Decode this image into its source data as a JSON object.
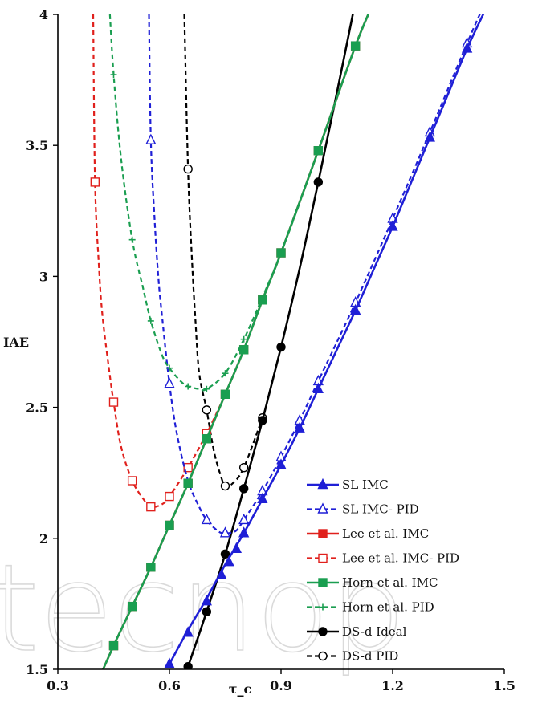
{
  "watermark": "tecnop",
  "chart_data": {
    "type": "line",
    "title": "",
    "xlabel": "τ_c",
    "ylabel": "IAE",
    "xlim": [
      0.3,
      1.5
    ],
    "ylim": [
      1.5,
      4.0
    ],
    "x_ticks": [
      0.3,
      0.6,
      0.9,
      1.2,
      1.5
    ],
    "x_tick_labels": [
      "0.3",
      "0.6",
      "0.9",
      "1.2",
      "1.5"
    ],
    "y_ticks": [
      1.5,
      2.0,
      2.5,
      3.0,
      3.5,
      4.0
    ],
    "y_tick_labels": [
      "1.5",
      "2",
      "2.5",
      "3",
      "3.5",
      "4"
    ],
    "grid": false,
    "legend_position": "bottom-right",
    "series": [
      {
        "name": "SL IMC",
        "color": "#1f1fd6",
        "dash": "solid",
        "marker": "triangle-filled",
        "x": [
          0.6,
          0.65,
          0.7,
          0.75,
          0.8,
          0.85,
          0.9,
          0.95,
          1.0,
          1.05,
          1.1,
          1.15,
          1.2,
          1.25,
          1.3,
          1.35,
          1.4,
          1.45
        ],
        "y": [
          1.52,
          1.65,
          1.77,
          1.9,
          2.02,
          2.15,
          2.28,
          2.42,
          2.57,
          2.72,
          2.87,
          3.03,
          3.19,
          3.36,
          3.53,
          3.7,
          3.87,
          4.02
        ],
        "marker_x": [
          0.6,
          0.65,
          0.7,
          0.74,
          0.76,
          0.78,
          0.8,
          0.85,
          0.9,
          0.95,
          1.0,
          1.1,
          1.2,
          1.3,
          1.4
        ],
        "marker_y": [
          1.52,
          1.64,
          1.76,
          1.86,
          1.91,
          1.96,
          2.02,
          2.15,
          2.28,
          2.42,
          2.57,
          2.87,
          3.19,
          3.53,
          3.87
        ]
      },
      {
        "name": "SL IMC- PID",
        "color": "#1f1fd6",
        "dash": "dashed",
        "marker": "triangle-open",
        "x": [
          0.545,
          0.55,
          0.56,
          0.57,
          0.58,
          0.6,
          0.62,
          0.65,
          0.68,
          0.7,
          0.72,
          0.74,
          0.76,
          0.78,
          0.8,
          0.85,
          0.9,
          0.95,
          1.0,
          1.1,
          1.2,
          1.3,
          1.4,
          1.45
        ],
        "y": [
          4.0,
          3.52,
          3.22,
          3.0,
          2.85,
          2.59,
          2.4,
          2.22,
          2.12,
          2.07,
          2.04,
          2.02,
          2.02,
          2.03,
          2.07,
          2.18,
          2.31,
          2.45,
          2.6,
          2.9,
          3.22,
          3.55,
          3.89,
          4.05
        ],
        "marker_x": [
          0.55,
          0.6,
          0.7,
          0.75,
          0.8,
          0.85,
          0.9,
          0.95,
          1.0,
          1.1,
          1.2,
          1.3,
          1.4
        ],
        "marker_y": [
          3.52,
          2.59,
          2.07,
          2.02,
          2.07,
          2.18,
          2.31,
          2.45,
          2.6,
          2.9,
          3.22,
          3.55,
          3.89
        ]
      },
      {
        "name": "Lee et al. IMC",
        "color": "#e0201c",
        "dash": "solid",
        "marker": "square-filled",
        "x": [
          0.4,
          0.45,
          0.5,
          0.55,
          0.6,
          0.65,
          0.7,
          0.75,
          0.8,
          0.85,
          0.9,
          1.0,
          1.1,
          1.15
        ],
        "y": [
          1.43,
          1.59,
          1.74,
          1.89,
          2.05,
          2.21,
          2.38,
          2.55,
          2.72,
          2.91,
          3.09,
          3.48,
          3.88,
          4.05
        ],
        "marker_x": [
          0.45,
          0.5,
          0.55,
          0.6,
          0.65,
          0.7,
          0.75,
          0.8,
          0.85,
          0.9,
          1.0,
          1.1
        ],
        "marker_y": [
          1.59,
          1.74,
          1.89,
          2.05,
          2.21,
          2.38,
          2.55,
          2.72,
          2.91,
          3.09,
          3.48,
          3.88
        ]
      },
      {
        "name": "Lee et al. IMC- PID",
        "color": "#e0201c",
        "dash": "dashed",
        "marker": "square-open",
        "x": [
          0.395,
          0.4,
          0.41,
          0.42,
          0.44,
          0.45,
          0.47,
          0.5,
          0.53,
          0.55,
          0.58,
          0.6,
          0.65,
          0.7,
          0.75,
          0.8
        ],
        "y": [
          4.0,
          3.36,
          3.05,
          2.85,
          2.62,
          2.52,
          2.35,
          2.22,
          2.15,
          2.12,
          2.13,
          2.16,
          2.27,
          2.4,
          2.55,
          2.72
        ],
        "marker_x": [
          0.4,
          0.45,
          0.5,
          0.55,
          0.6,
          0.65,
          0.7
        ],
        "marker_y": [
          3.36,
          2.52,
          2.22,
          2.12,
          2.16,
          2.27,
          2.4
        ]
      },
      {
        "name": "Horn et al. IMC",
        "color": "#1a9e50",
        "dash": "solid",
        "marker": "square-filled",
        "x": [
          0.4,
          0.45,
          0.5,
          0.55,
          0.6,
          0.65,
          0.7,
          0.75,
          0.8,
          0.85,
          0.9,
          1.0,
          1.1,
          1.15
        ],
        "y": [
          1.43,
          1.59,
          1.74,
          1.89,
          2.05,
          2.21,
          2.38,
          2.55,
          2.72,
          2.91,
          3.09,
          3.48,
          3.88,
          4.05
        ],
        "marker_x": [
          0.45,
          0.5,
          0.55,
          0.6,
          0.65,
          0.7,
          0.75,
          0.8,
          0.85,
          0.9,
          1.0,
          1.1
        ],
        "marker_y": [
          1.59,
          1.74,
          1.89,
          2.05,
          2.21,
          2.38,
          2.55,
          2.72,
          2.91,
          3.09,
          3.48,
          3.88
        ]
      },
      {
        "name": "Horn et al. PID",
        "color": "#1a9e50",
        "dash": "dashed",
        "marker": "plus",
        "x": [
          0.44,
          0.45,
          0.47,
          0.5,
          0.53,
          0.55,
          0.58,
          0.6,
          0.63,
          0.65,
          0.68,
          0.7,
          0.75,
          0.8,
          0.85,
          0.9,
          0.95
        ],
        "y": [
          4.0,
          3.77,
          3.45,
          3.14,
          2.95,
          2.83,
          2.7,
          2.65,
          2.6,
          2.58,
          2.57,
          2.57,
          2.63,
          2.76,
          2.92,
          3.09,
          3.28
        ],
        "marker_x": [
          0.45,
          0.5,
          0.55,
          0.6,
          0.65,
          0.7,
          0.75,
          0.8
        ],
        "marker_y": [
          3.77,
          3.14,
          2.83,
          2.65,
          2.58,
          2.57,
          2.63,
          2.76
        ]
      },
      {
        "name": "DS-d Ideal",
        "color": "#000000",
        "dash": "solid",
        "marker": "circle-filled",
        "x": [
          0.65,
          0.7,
          0.75,
          0.8,
          0.85,
          0.9,
          0.95,
          1.0,
          1.05,
          1.1
        ],
        "y": [
          1.51,
          1.72,
          1.94,
          2.19,
          2.45,
          2.73,
          3.03,
          3.36,
          3.7,
          4.05
        ],
        "marker_x": [
          0.65,
          0.7,
          0.75,
          0.8,
          0.85,
          0.9,
          1.0
        ],
        "marker_y": [
          1.51,
          1.72,
          1.94,
          2.19,
          2.45,
          2.73,
          3.36
        ]
      },
      {
        "name": "DS-d PID",
        "color": "#000000",
        "dash": "dashed",
        "marker": "circle-open",
        "x": [
          0.64,
          0.65,
          0.66,
          0.67,
          0.68,
          0.7,
          0.72,
          0.74,
          0.75,
          0.77,
          0.8,
          0.85
        ],
        "y": [
          4.0,
          3.41,
          3.08,
          2.83,
          2.63,
          2.49,
          2.33,
          2.23,
          2.2,
          2.21,
          2.27,
          2.46
        ],
        "marker_x": [
          0.65,
          0.7,
          0.75,
          0.8,
          0.85
        ],
        "marker_y": [
          3.41,
          2.49,
          2.2,
          2.27,
          2.46
        ]
      }
    ]
  }
}
